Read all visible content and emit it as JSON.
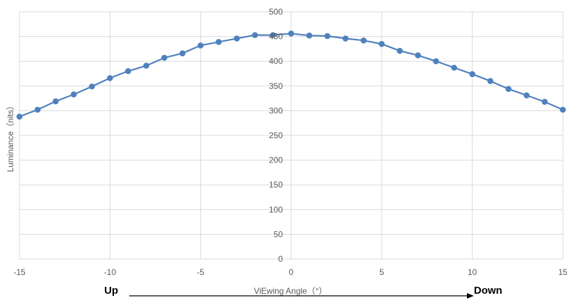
{
  "chart_data": {
    "type": "line",
    "ylabel": "Luminance（nits）",
    "xlabel": "ViEwing Angle（°）",
    "direction_labels": {
      "left": "Up",
      "right": "Down"
    },
    "xlim": [
      -15,
      15
    ],
    "ylim": [
      0,
      500
    ],
    "x_ticks": [
      "-15",
      "-10",
      "-5",
      "0",
      "5",
      "10",
      "15"
    ],
    "y_ticks": [
      "0",
      "50",
      "100",
      "150",
      "200",
      "250",
      "300",
      "350",
      "400",
      "450",
      "500"
    ],
    "grid": true,
    "colors": {
      "series": "#4f81bd",
      "grid": "#d9d9d9",
      "arrow": "#000000"
    },
    "series": [
      {
        "x": [
          -15,
          -14,
          -13,
          -12,
          -11,
          -10,
          -9,
          -8,
          -7,
          -6,
          -5,
          -4,
          -3,
          -2,
          -1,
          0,
          1,
          2,
          3,
          4,
          5,
          6,
          7,
          8,
          9,
          10,
          11,
          12,
          13,
          14,
          15
        ],
        "y": [
          288,
          302,
          319,
          333,
          349,
          366,
          380,
          391,
          407,
          416,
          432,
          439,
          446,
          453,
          453,
          456,
          452,
          451,
          446,
          442,
          435,
          421,
          412,
          400,
          387,
          374,
          360,
          344,
          331,
          318,
          302
        ]
      }
    ]
  }
}
